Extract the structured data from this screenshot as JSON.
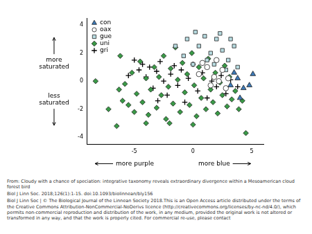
{
  "chart_data": {
    "type": "scatter",
    "xlim": [
      -9,
      6
    ],
    "ylim": [
      -4.5,
      4.5
    ],
    "xticks": [
      -5,
      0,
      5
    ],
    "yticks": [
      -4,
      -2,
      0,
      2,
      4
    ],
    "grid": false,
    "legend": "top-left",
    "annotations": [
      "more saturated",
      "less saturated",
      "more purple",
      "more blue"
    ],
    "caption": [
      "From: Cloudy with a chance of speciation: integrative taxonomy reveals extraordinary divergence within a Mesoamerican cloud forest bird",
      "Biol J Linn Soc. 2018;126(1):1-15. doi:10.1093/biolinnean/bly156",
      "Biol J Linn Soc | © The Biological Journal of the Linnean Society 2018.This is an Open Access article distributed under the terms of the Creative Commons Attribution-NonCommercial-NoDerivs licence (http://creativecommons.org/licenses/by-nc-nd/4.0/), which permits non-commercial reproduction and distribution of the work, in any medium, provided the original work is not altered or transformed in any way, and that the work is properly cited. For commercial re-use, please contact"
    ],
    "series": [
      {
        "name": "con",
        "color": "#3d7ab8",
        "marker": "triangle",
        "values": [
          [
            3.2,
            -0.3
          ],
          [
            3.8,
            0.2
          ],
          [
            4.3,
            -0.5
          ],
          [
            4.8,
            -0.3
          ],
          [
            5.1,
            0.5
          ],
          [
            4.0,
            -1.2
          ],
          [
            3.5,
            0.6
          ]
        ]
      },
      {
        "name": "oax",
        "color": "#ffffff",
        "marker": "circle",
        "values": [
          [
            0.5,
            0.5
          ],
          [
            1.2,
            1.0
          ],
          [
            1.8,
            0.3
          ],
          [
            2.5,
            0.8
          ],
          [
            2.0,
            1.5
          ],
          [
            3.0,
            0.2
          ],
          [
            1.5,
            -0.3
          ],
          [
            2.8,
            -0.5
          ],
          [
            0.8,
            1.3
          ],
          [
            2.2,
            0.0
          ]
        ]
      },
      {
        "name": "gue",
        "color": "#b7dbe0",
        "marker": "rect",
        "values": [
          [
            -1.5,
            2.5
          ],
          [
            -0.5,
            3.0
          ],
          [
            0.5,
            2.5
          ],
          [
            1.0,
            3.2
          ],
          [
            1.5,
            2.0
          ],
          [
            2.0,
            3.0
          ],
          [
            2.5,
            2.2
          ],
          [
            3.0,
            1.5
          ],
          [
            3.5,
            2.5
          ],
          [
            0.2,
            3.5
          ],
          [
            1.8,
            1.2
          ],
          [
            2.8,
            0.8
          ],
          [
            3.8,
            1.0
          ],
          [
            -0.8,
            1.8
          ],
          [
            1.2,
            1.5
          ],
          [
            2.3,
            3.4
          ],
          [
            0.0,
            1.2
          ],
          [
            3.2,
            3.0
          ]
        ]
      },
      {
        "name": "uni",
        "color": "#3a9a47",
        "marker": "rectRot",
        "values": [
          [
            -8.3,
            0.0
          ],
          [
            -7.2,
            -2.0
          ],
          [
            -6.2,
            1.8
          ],
          [
            -6.3,
            -0.6
          ],
          [
            -6.0,
            -1.4
          ],
          [
            -5.8,
            -0.2
          ],
          [
            -5.5,
            -1.7
          ],
          [
            -5.2,
            0.6
          ],
          [
            -5.0,
            -2.2
          ],
          [
            -4.8,
            -0.9
          ],
          [
            -4.5,
            1.4
          ],
          [
            -4.3,
            -1.5
          ],
          [
            -4.0,
            0.2
          ],
          [
            -3.8,
            -2.4
          ],
          [
            -3.6,
            -0.6
          ],
          [
            -3.3,
            1.0
          ],
          [
            -3.1,
            -1.9
          ],
          [
            -2.9,
            0.3
          ],
          [
            -2.7,
            -1.0
          ],
          [
            -2.5,
            1.8
          ],
          [
            -2.3,
            -2.7
          ],
          [
            -2.1,
            -0.4
          ],
          [
            -1.9,
            0.9
          ],
          [
            -1.7,
            -1.6
          ],
          [
            -1.5,
            2.4
          ],
          [
            -1.3,
            0.1
          ],
          [
            -1.1,
            -2.2
          ],
          [
            -0.9,
            1.3
          ],
          [
            -0.7,
            -0.8
          ],
          [
            -0.5,
            0.5
          ],
          [
            -0.3,
            -1.7
          ],
          [
            -0.1,
            2.0
          ],
          [
            0.1,
            -0.3
          ],
          [
            0.3,
            -2.5
          ],
          [
            0.5,
            1.0
          ],
          [
            0.7,
            -1.2
          ],
          [
            0.9,
            0.2
          ],
          [
            1.1,
            -2.0
          ],
          [
            1.3,
            1.6
          ],
          [
            1.5,
            -0.6
          ],
          [
            1.7,
            -1.5
          ],
          [
            1.9,
            0.6
          ],
          [
            2.1,
            -2.3
          ],
          [
            2.3,
            -0.1
          ],
          [
            2.5,
            -1.0
          ],
          [
            2.7,
            1.1
          ],
          [
            2.9,
            -1.8
          ],
          [
            3.1,
            0.3
          ],
          [
            3.3,
            -1.3
          ],
          [
            3.6,
            -0.7
          ],
          [
            3.9,
            -2.0
          ],
          [
            4.2,
            -1.4
          ],
          [
            4.5,
            -3.7
          ],
          [
            -2.0,
            -3.0
          ],
          [
            0.0,
            -3.1
          ],
          [
            -4.0,
            -3.0
          ],
          [
            -6.5,
            -3.2
          ]
        ]
      },
      {
        "name": "gri",
        "color": "#000000",
        "marker": "cross",
        "values": [
          [
            -5.0,
            1.5
          ],
          [
            -4.6,
            0.8
          ],
          [
            -4.3,
            1.2
          ],
          [
            -4.0,
            0.3
          ],
          [
            -3.7,
            1.0
          ],
          [
            -3.4,
            -0.5
          ],
          [
            -3.1,
            0.7
          ],
          [
            -2.8,
            1.4
          ],
          [
            -2.5,
            0.0
          ],
          [
            -2.2,
            -1.0
          ],
          [
            -1.9,
            0.5
          ],
          [
            -1.6,
            1.1
          ],
          [
            -1.3,
            -0.3
          ],
          [
            -1.0,
            0.8
          ],
          [
            -0.7,
            -1.5
          ],
          [
            -0.4,
            0.2
          ],
          [
            0.0,
            1.2
          ],
          [
            0.4,
            -0.7
          ],
          [
            0.8,
            0.6
          ],
          [
            1.2,
            -1.2
          ],
          [
            1.6,
            0.0
          ],
          [
            2.0,
            -0.4
          ],
          [
            2.4,
            0.4
          ],
          [
            2.8,
            -0.9
          ],
          [
            3.2,
            0.1
          ],
          [
            3.8,
            -0.4
          ],
          [
            -5.5,
            0.4
          ],
          [
            -3.0,
            -1.4
          ]
        ]
      }
    ]
  }
}
